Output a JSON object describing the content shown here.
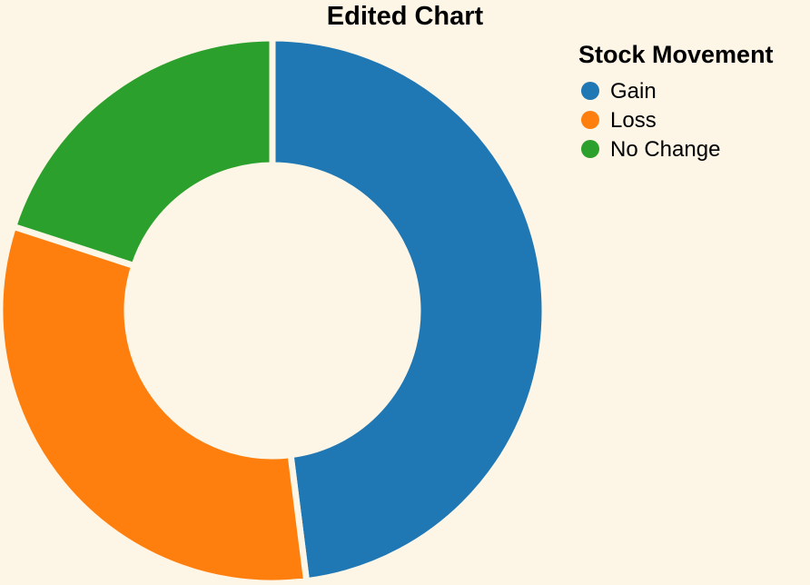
{
  "chart_data": {
    "type": "pie",
    "variant": "donut",
    "title": "Edited Chart",
    "legend": {
      "title": "Stock Movement",
      "placement": "top-right"
    },
    "categories": [
      "Gain",
      "Loss",
      "No Change"
    ],
    "values": [
      48,
      32,
      20
    ],
    "colors": [
      "#1f77b4",
      "#ff7f0e",
      "#2ca02c"
    ],
    "background": "#fdf5e6"
  }
}
